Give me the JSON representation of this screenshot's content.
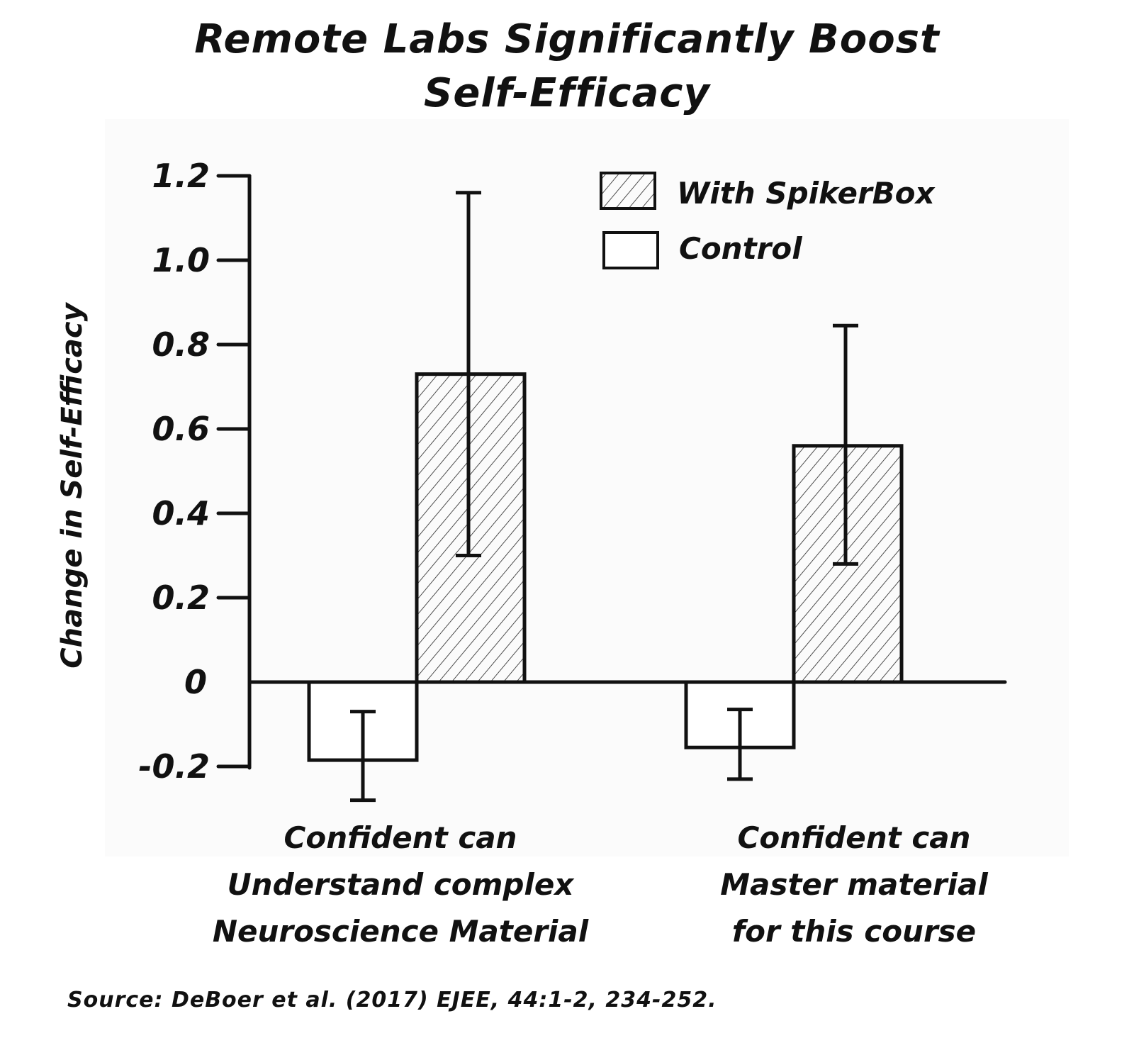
{
  "chart_data": {
    "type": "bar",
    "title_lines": [
      "Remote Labs Significantly Boost",
      "Self-Efficacy"
    ],
    "ylabel": "Change in Self-Efficacy",
    "xlabel": "",
    "ylim": [
      -0.2,
      1.2
    ],
    "yticks": [
      "-0.2",
      "0",
      "0.2",
      "0.4",
      "0.6",
      "0.8",
      "1.0",
      "1.2"
    ],
    "categories": [
      [
        "Confident can",
        "Understand complex",
        "Neuroscience Material"
      ],
      [
        "Confident can",
        "Master material",
        "for this course"
      ]
    ],
    "series": [
      {
        "name": "Control",
        "values": [
          -0.185,
          -0.155
        ],
        "err_low": [
          -0.28,
          -0.23
        ],
        "err_high": [
          -0.07,
          -0.065
        ],
        "fill": "none"
      },
      {
        "name": "With SpikerBox",
        "values": [
          0.73,
          0.56
        ],
        "err_low": [
          0.3,
          0.28
        ],
        "err_high": [
          1.16,
          0.845
        ],
        "fill": "hatched"
      }
    ],
    "legend": "top-right",
    "grid": false
  },
  "source": "Source: DeBoer et al. (2017) EJEE, 44:1-2, 234-252.",
  "colors": {
    "ink": "#111111",
    "background": "#ffffff",
    "panel": "#fbfbfb"
  }
}
